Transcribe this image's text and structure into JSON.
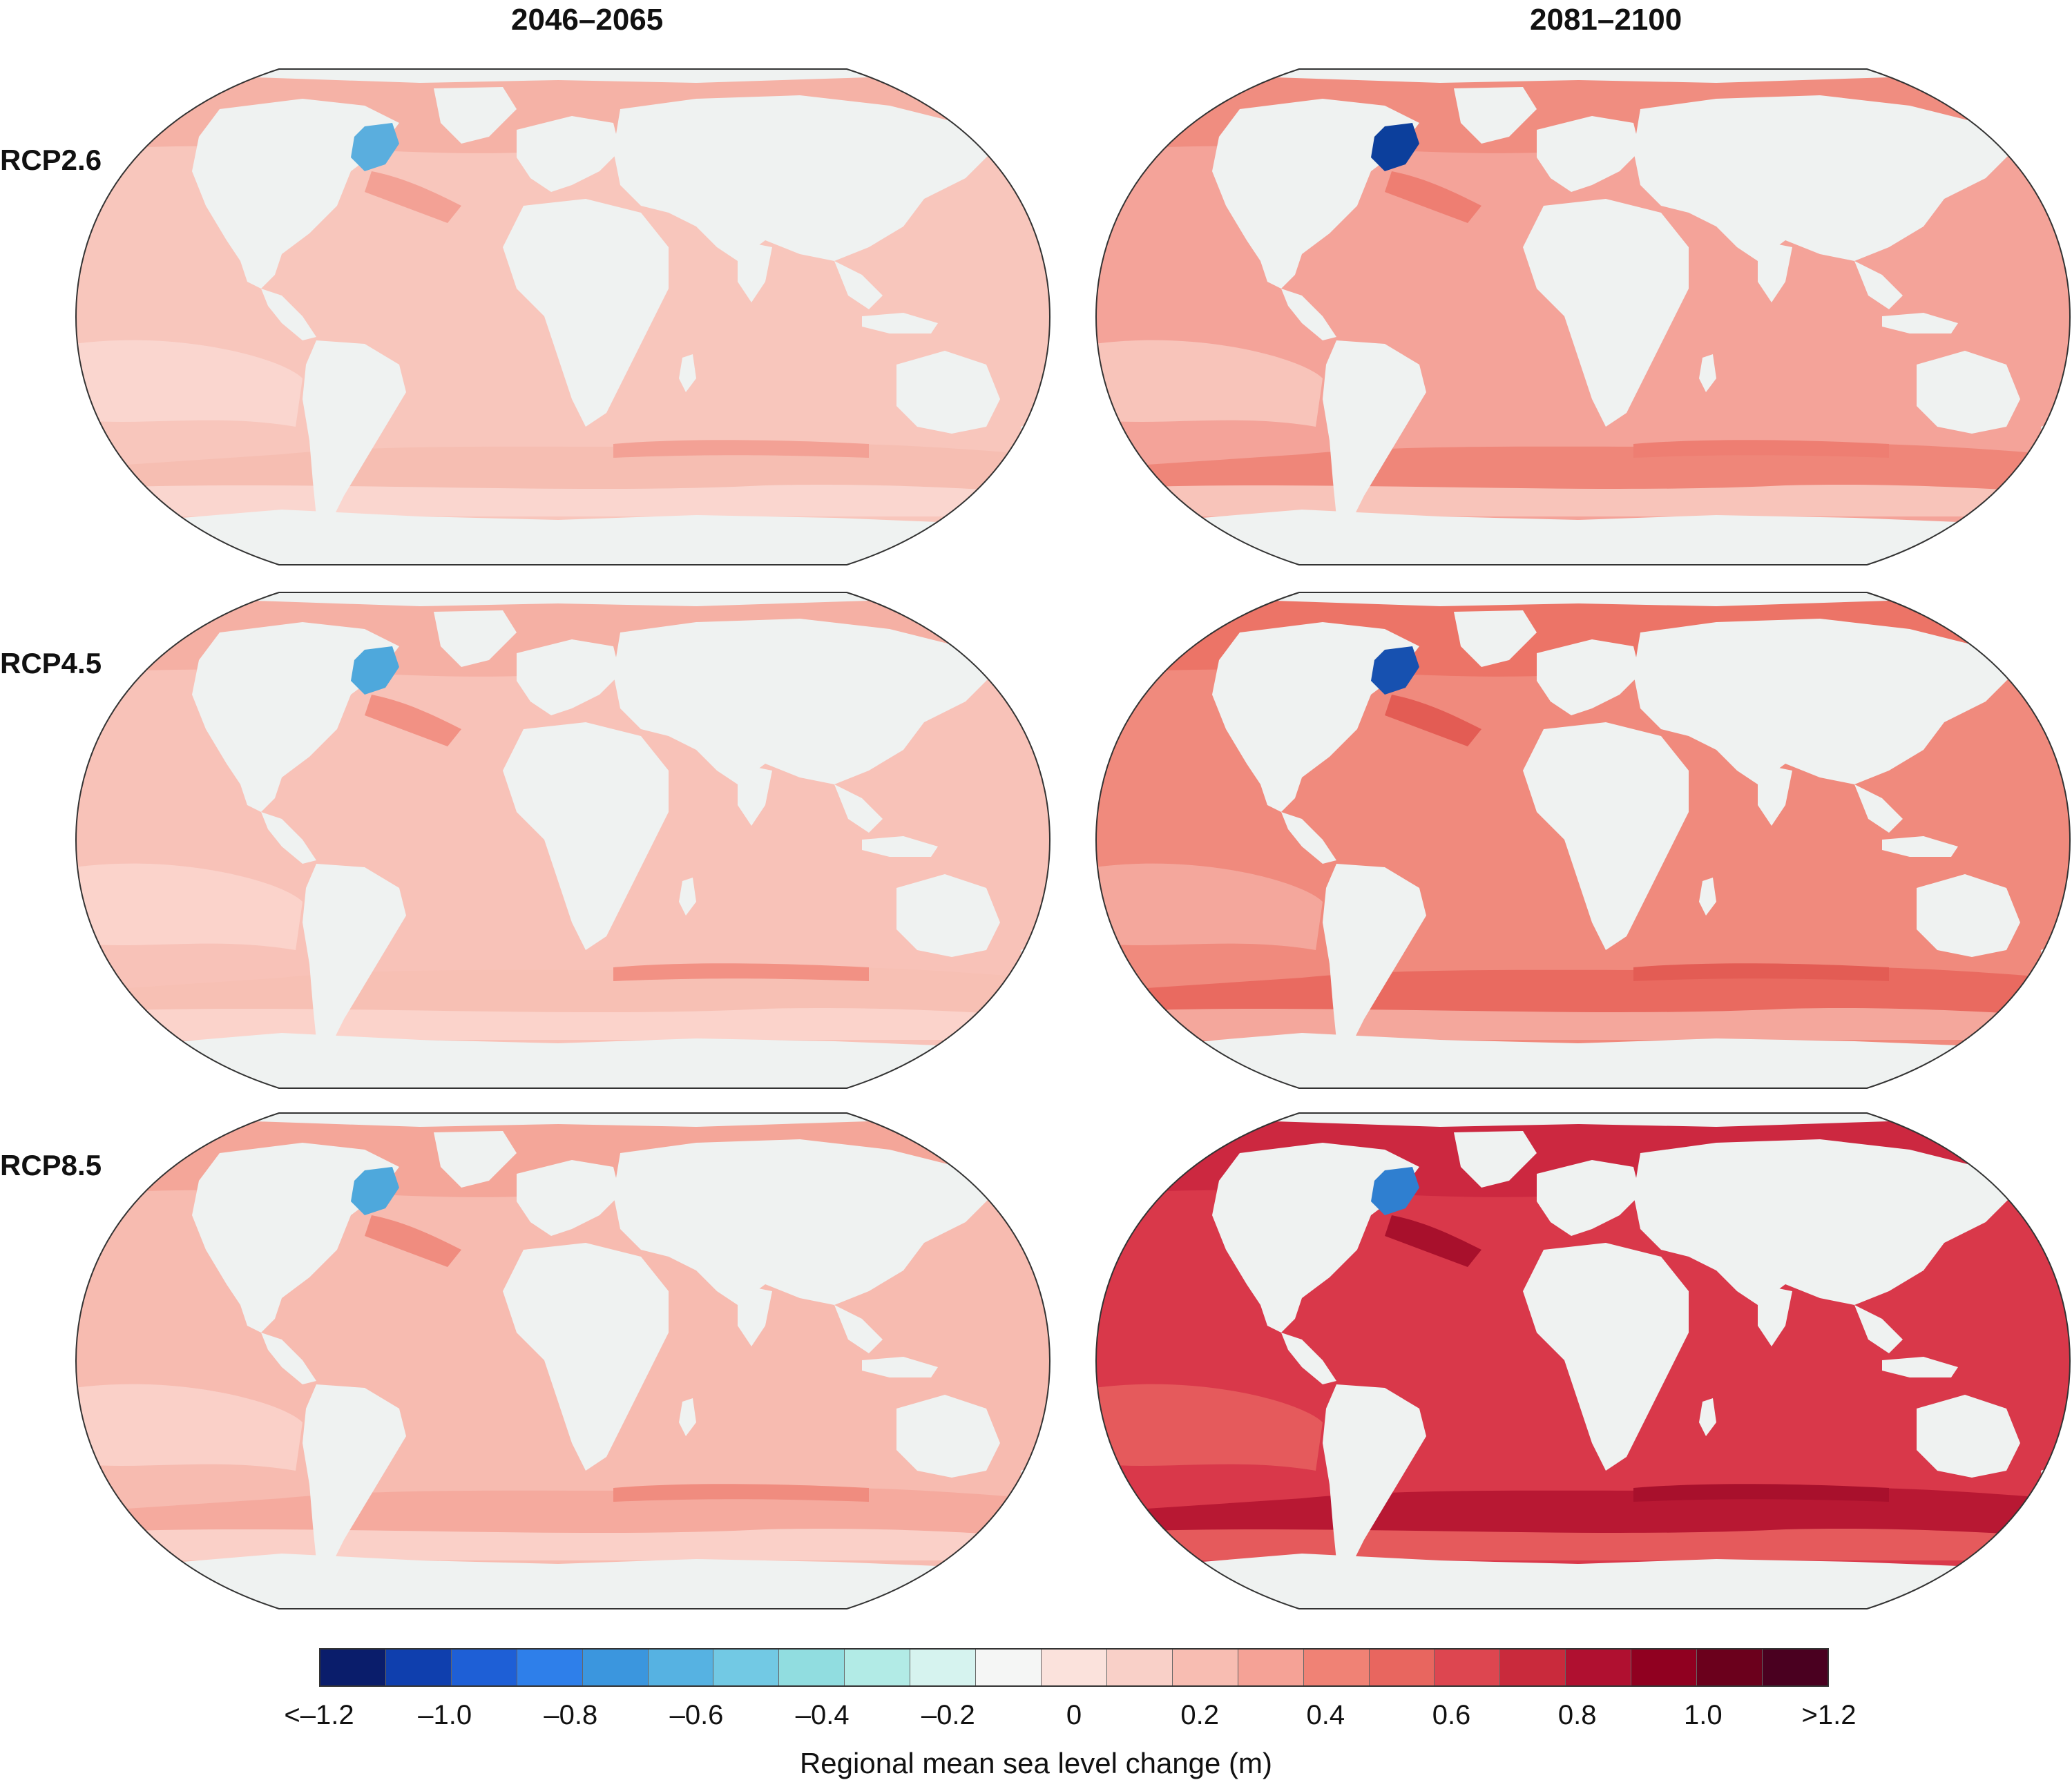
{
  "columns": [
    {
      "title": "2046–2065"
    },
    {
      "title": "2081–2100"
    }
  ],
  "rows": [
    {
      "label": "RCP2.6"
    },
    {
      "label": "RCP4.5"
    },
    {
      "label": "RCP8.5"
    }
  ],
  "panels": [
    {
      "scenario": "RCP2.6",
      "period": "2046–2065",
      "ocean": "#f8c6bc",
      "band_south": "#fad6cf",
      "band_north": "#f5b2a6",
      "accent": "#f3a195",
      "southern_ocean": "#f6beb2",
      "labrador": "#5aaede"
    },
    {
      "scenario": "RCP2.6",
      "period": "2081–2100",
      "ocean": "#f4a399",
      "band_south": "#f8c4ba",
      "band_north": "#f08d80",
      "accent": "#ee7e72",
      "southern_ocean": "#ef8679",
      "labrador": "#0c3f9c"
    },
    {
      "scenario": "RCP4.5",
      "period": "2046–2065",
      "ocean": "#f8c2b8",
      "band_south": "#fbd3cb",
      "band_north": "#f5b0a4",
      "accent": "#f29184",
      "southern_ocean": "#f7c0b4",
      "labrador": "#4ea8dc"
    },
    {
      "scenario": "RCP4.5",
      "period": "2081–2100",
      "ocean": "#f08a7d",
      "band_south": "#f4a79c",
      "band_north": "#ec7467",
      "accent": "#e35c54",
      "southern_ocean": "#e96a60",
      "labrador": "#1751b0"
    },
    {
      "scenario": "RCP8.5",
      "period": "2046–2065",
      "ocean": "#f7bbb0",
      "band_south": "#fad0c8",
      "band_north": "#f4a699",
      "accent": "#f08c7f",
      "southern_ocean": "#f5aa9e",
      "labrador": "#4ea8dc"
    },
    {
      "scenario": "RCP8.5",
      "period": "2081–2100",
      "ocean": "#d9384a",
      "band_south": "#e55a5c",
      "band_north": "#cc2840",
      "accent": "#a8102c",
      "southern_ocean": "#b81833",
      "labrador": "#2f7fd0"
    }
  ],
  "colorbar": {
    "title": "Regional mean sea level change (m)",
    "colors": [
      "#0a1d6b",
      "#0f3fae",
      "#1e5fd6",
      "#2e7fea",
      "#3b96de",
      "#56b2e2",
      "#72c9e4",
      "#91dde0",
      "#b2ebe6",
      "#d6f3ef",
      "#f5f6f5",
      "#fbe2dc",
      "#f9d0c8",
      "#f8bdb2",
      "#f5a296",
      "#f08275",
      "#e8665f",
      "#dd4650",
      "#c92a3c",
      "#b01030",
      "#900020",
      "#6b001c",
      "#4a0020"
    ],
    "ticks": [
      {
        "label": "<–1.2",
        "value": -1.2
      },
      {
        "label": "–1.0",
        "value": -1.0
      },
      {
        "label": "–0.8",
        "value": -0.8
      },
      {
        "label": "–0.6",
        "value": -0.6
      },
      {
        "label": "–0.4",
        "value": -0.4
      },
      {
        "label": "–0.2",
        "value": -0.2
      },
      {
        "label": "0",
        "value": 0
      },
      {
        "label": "0.2",
        "value": 0.2
      },
      {
        "label": "0.4",
        "value": 0.4
      },
      {
        "label": "0.6",
        "value": 0.6
      },
      {
        "label": "0.8",
        "value": 0.8
      },
      {
        "label": "1.0",
        "value": 1.0
      },
      {
        "label": ">1.2",
        "value": 1.2
      }
    ],
    "range": [
      -1.2,
      1.2
    ]
  },
  "land_color": "#eff2f1"
}
